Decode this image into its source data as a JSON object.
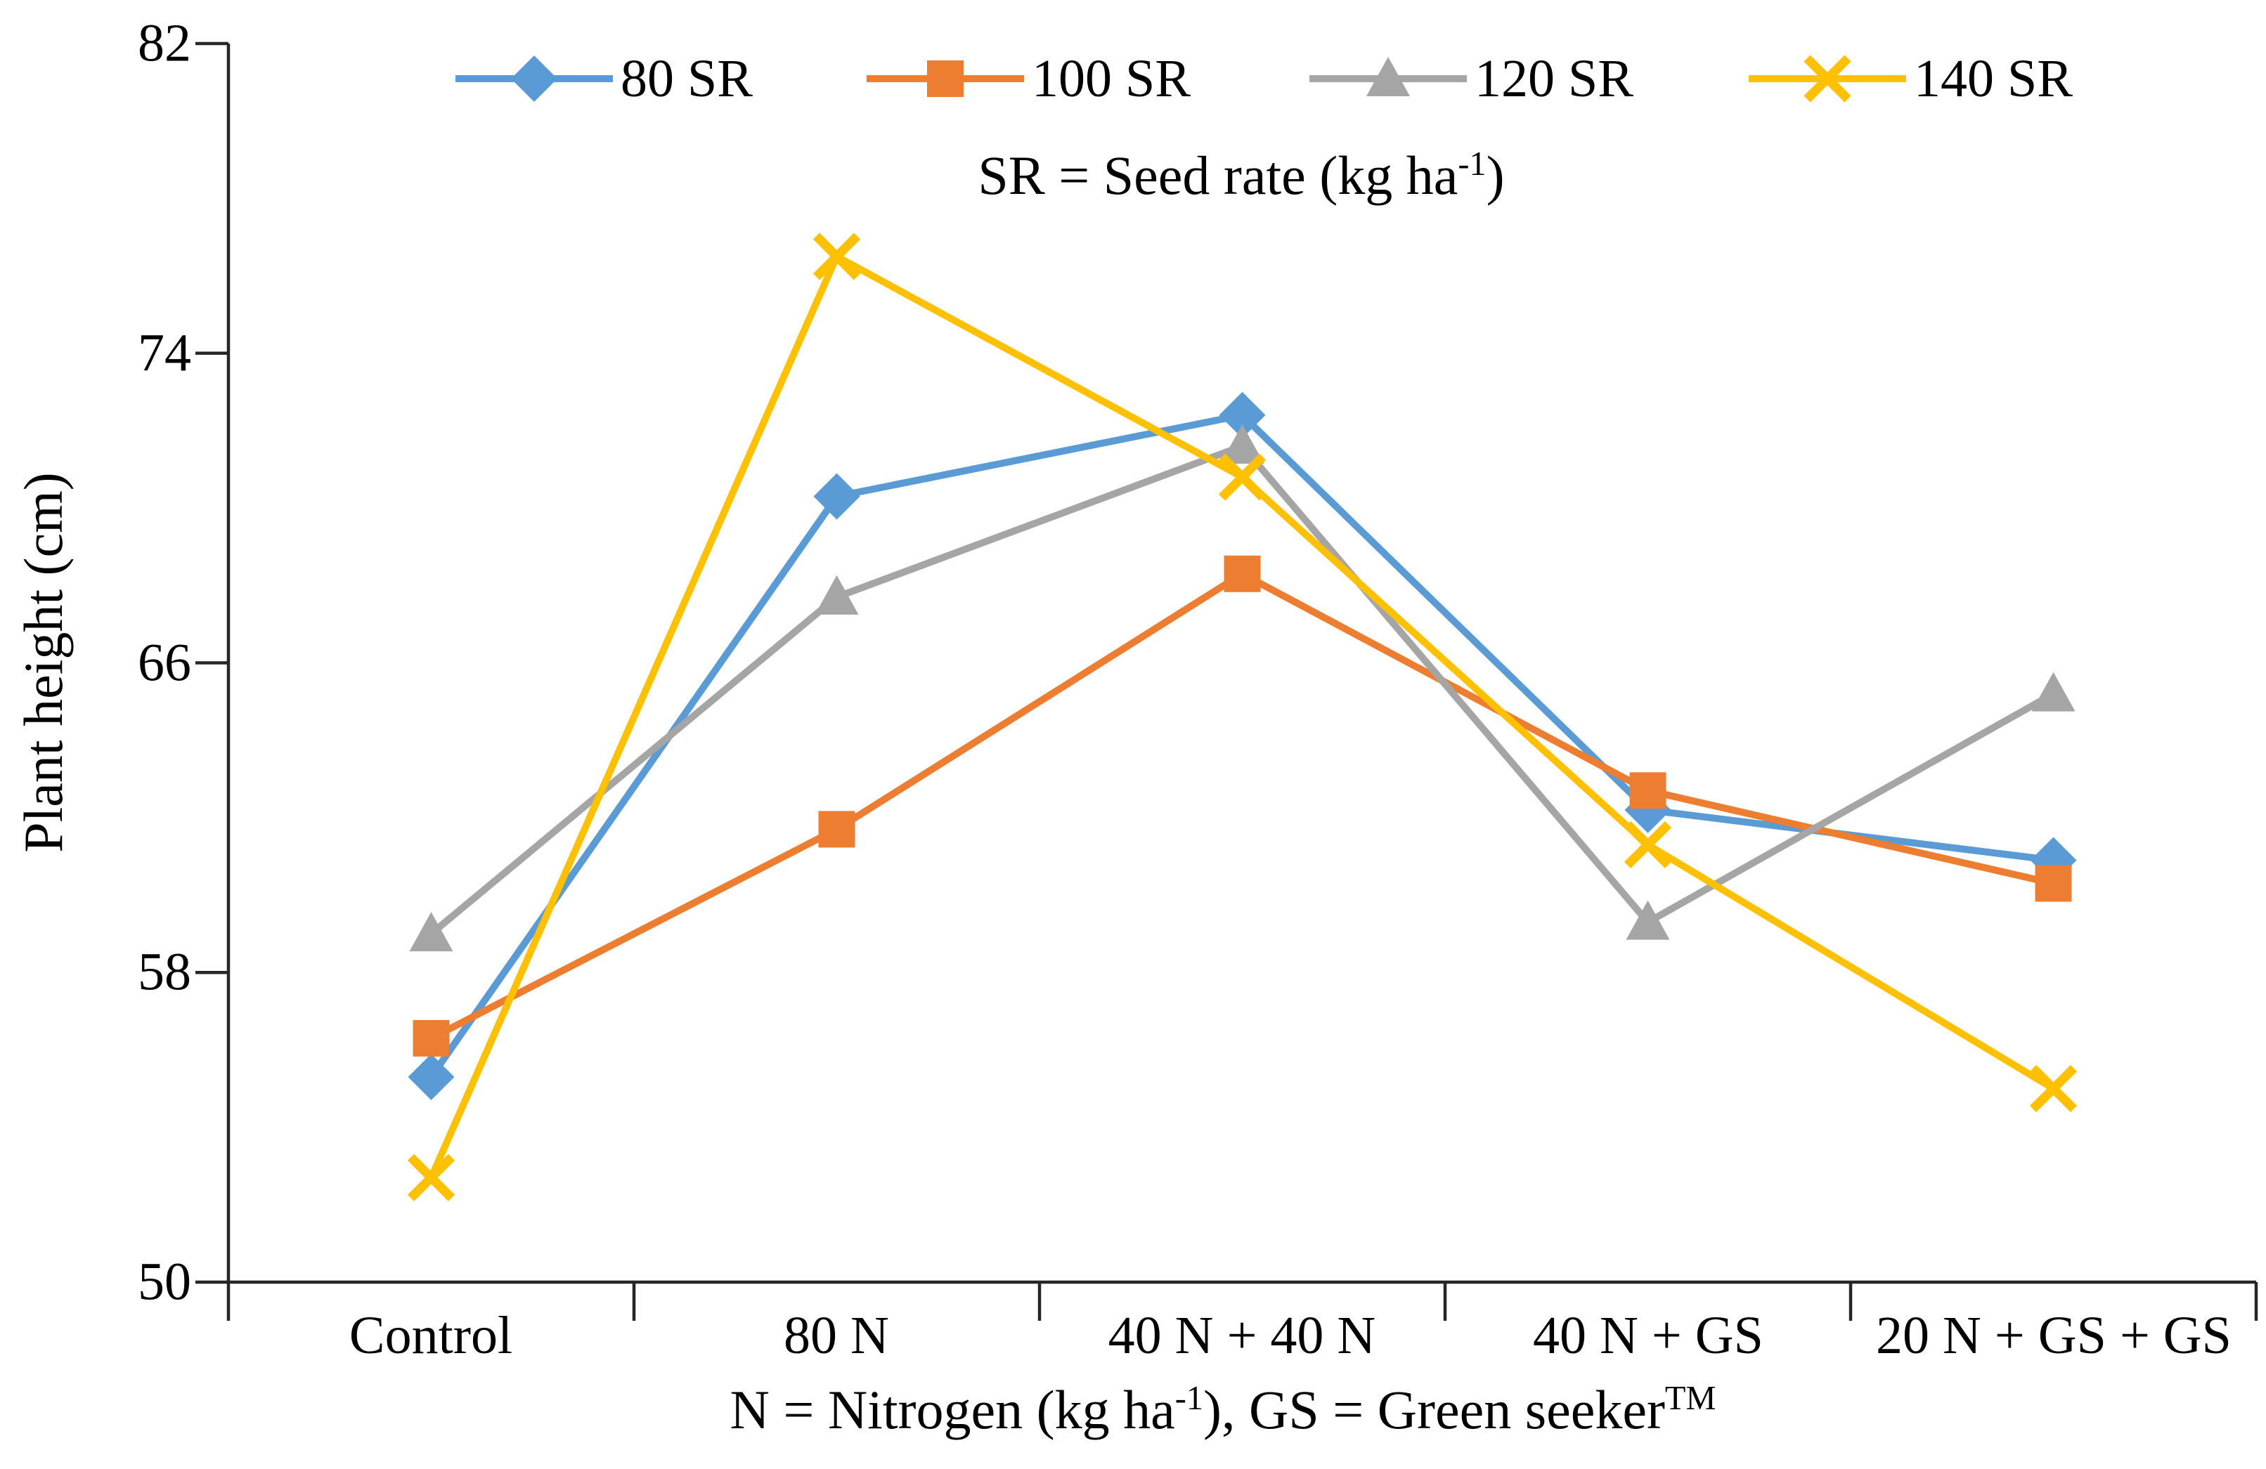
{
  "chart_data": {
    "type": "line",
    "title": "",
    "categories": [
      "Control",
      "80 N",
      "40 N + 40 N",
      "40 N + GS",
      "20 N + GS + GS"
    ],
    "xlabel": "N = Nitrogen (kg ha⁻¹), GS = Green seeker™",
    "ylabel": "Plant height (cm)",
    "legend_note": "SR = Seed rate (kg ha⁻¹)",
    "ylim": [
      50,
      82
    ],
    "yticks": [
      82,
      74,
      66,
      58,
      50
    ],
    "grid": false,
    "legend_position": "top",
    "axis_color": "#262626",
    "series": [
      {
        "name": "80 SR",
        "marker": "diamond",
        "color": "#5B9BD5",
        "values": [
          55.3,
          70.3,
          72.4,
          62.2,
          60.9
        ]
      },
      {
        "name": "100 SR",
        "marker": "square",
        "color": "#ED7D31",
        "values": [
          56.3,
          61.7,
          68.3,
          62.7,
          60.3
        ]
      },
      {
        "name": "120 SR",
        "marker": "triangle",
        "color": "#A5A5A5",
        "values": [
          59.0,
          67.7,
          71.6,
          59.3,
          65.2
        ]
      },
      {
        "name": "140 SR",
        "marker": "x",
        "color": "#FFC000",
        "values": [
          52.7,
          76.5,
          70.8,
          61.3,
          55.0
        ]
      }
    ],
    "xlabel_parts": {
      "text1": "N = Nitrogen (kg ha",
      "sup1": "-1",
      "text2": "), GS = Green seeker",
      "sup2": "TM"
    },
    "legend_note_parts": {
      "text1": "SR = Seed rate (kg ha",
      "sup1": "-1",
      "text2": ")"
    }
  }
}
